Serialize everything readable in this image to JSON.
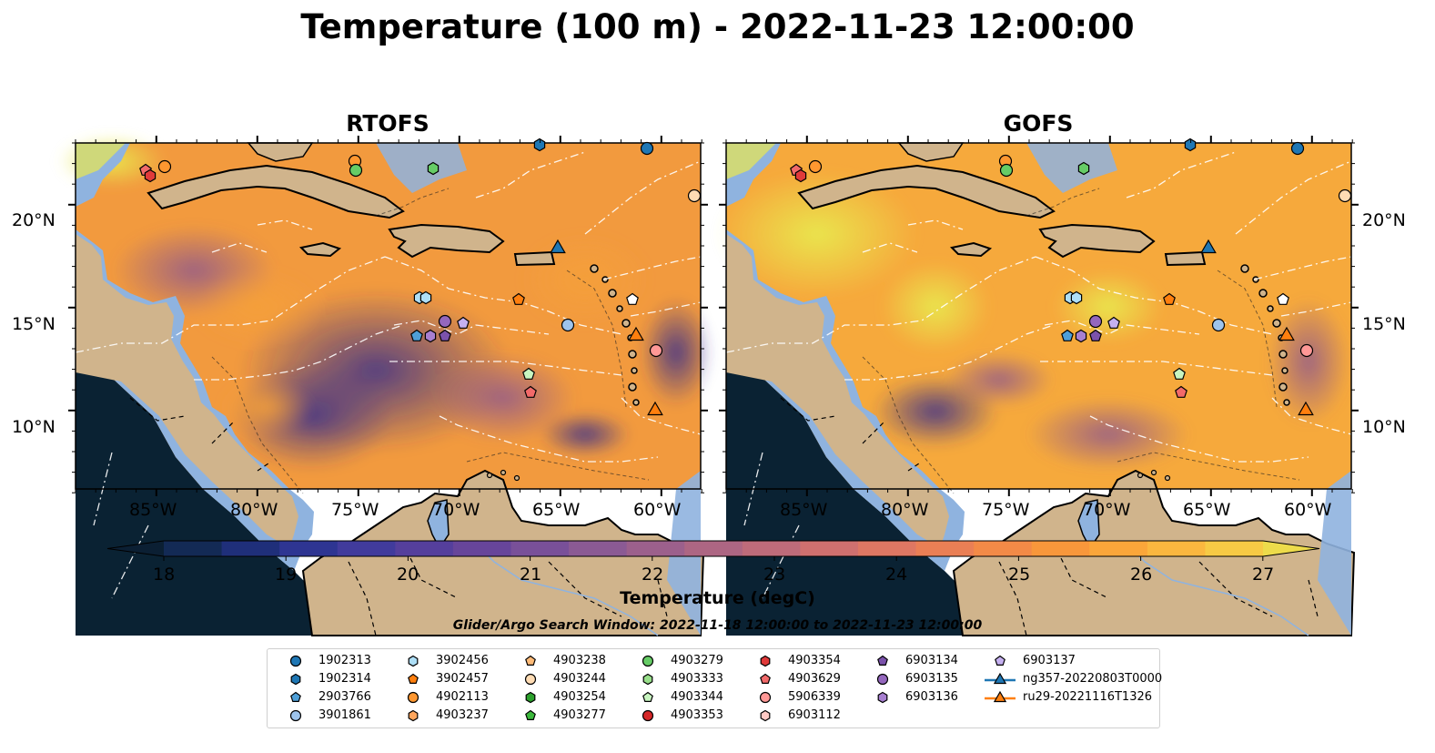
{
  "title": "Temperature (100 m) - 2022-11-23 12:00:00",
  "panels": [
    {
      "title": "RTOFS"
    },
    {
      "title": "GOFS"
    }
  ],
  "lon_ticks": [
    "85°W",
    "80°W",
    "75°W",
    "70°W",
    "65°W",
    "60°W"
  ],
  "lat_ticks": [
    "20°N",
    "15°N",
    "10°N"
  ],
  "colorbar": {
    "min": 18,
    "max": 27,
    "ticks": [
      "18",
      "19",
      "20",
      "21",
      "22",
      "23",
      "24",
      "25",
      "26",
      "27"
    ],
    "label": "Temperature (degC)",
    "colors": [
      "#0b1f33",
      "#132a55",
      "#1f2f7a",
      "#2e3592",
      "#413b9c",
      "#553f9c",
      "#67459a",
      "#795099",
      "#8b5a94",
      "#9c608c",
      "#ad6683",
      "#be6b7a",
      "#cf706f",
      "#de7763",
      "#ea7f55",
      "#f38a47",
      "#f8973b",
      "#fba63a",
      "#fbb73f",
      "#f7ca45",
      "#eddb4b"
    ]
  },
  "search_window": "Glider/Argo Search Window: 2022-11-18 12:00:00 to 2022-11-23 12:00:00",
  "legend": [
    {
      "label": "1902313",
      "shape": "circle",
      "color": "#1f77b4"
    },
    {
      "label": "1902314",
      "shape": "hexagon",
      "color": "#1f77b4"
    },
    {
      "label": "2903766",
      "shape": "pentagon",
      "color": "#4e9fd8"
    },
    {
      "label": "3901861",
      "shape": "circle",
      "color": "#9ec4ec"
    },
    {
      "label": "3902456",
      "shape": "hexagon",
      "color": "#aedff7"
    },
    {
      "label": "3902457",
      "shape": "pentagon",
      "color": "#ff7f0e"
    },
    {
      "label": "4902113",
      "shape": "circle",
      "color": "#ff9730"
    },
    {
      "label": "4903237",
      "shape": "hexagon",
      "color": "#ffa55c"
    },
    {
      "label": "4903238",
      "shape": "pentagon",
      "color": "#ffbb78"
    },
    {
      "label": "4903244",
      "shape": "circle",
      "color": "#ffdcb4"
    },
    {
      "label": "4903254",
      "shape": "hexagon",
      "color": "#2ca02c"
    },
    {
      "label": "4903277",
      "shape": "pentagon",
      "color": "#3cb83c"
    },
    {
      "label": "4903279",
      "shape": "circle",
      "color": "#66cc66"
    },
    {
      "label": "4903333",
      "shape": "hexagon",
      "color": "#98df8a"
    },
    {
      "label": "4903344",
      "shape": "pentagon",
      "color": "#c8f5c0"
    },
    {
      "label": "4903353",
      "shape": "circle",
      "color": "#d62728"
    },
    {
      "label": "4903354",
      "shape": "hexagon",
      "color": "#e03a3a"
    },
    {
      "label": "4903629",
      "shape": "pentagon",
      "color": "#f26a6a"
    },
    {
      "label": "5906339",
      "shape": "circle",
      "color": "#ff9896"
    },
    {
      "label": "6903112",
      "shape": "hexagon",
      "color": "#ffc9c4"
    },
    {
      "label": "6903134",
      "shape": "pentagon",
      "color": "#7b52ab"
    },
    {
      "label": "6903135",
      "shape": "circle",
      "color": "#9467bd"
    },
    {
      "label": "6903136",
      "shape": "hexagon",
      "color": "#a77fd0"
    },
    {
      "label": "6903137",
      "shape": "pentagon",
      "color": "#c5b0f0"
    },
    {
      "label": "ng357-20220803T0000",
      "shape": "triangle-line",
      "color": "#1f77b4"
    },
    {
      "label": "ru29-20221116T1326",
      "shape": "triangle-line",
      "color": "#ff7f0e"
    }
  ],
  "colors": {
    "land": "#d0b48c",
    "shelf": "#8fb3df",
    "pacific": "#0a2233"
  }
}
